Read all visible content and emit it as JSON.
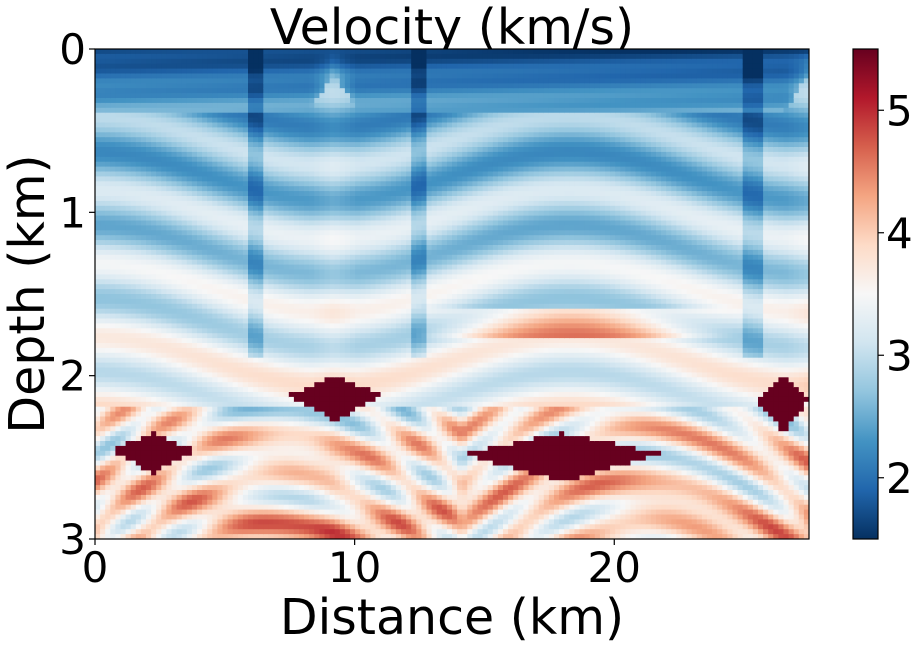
{
  "chart_data": {
    "type": "heatmap",
    "title": "Velocity (km/s)",
    "xlabel": "Distance (km)",
    "ylabel": "Depth (km)",
    "xlim": [
      0,
      27.5
    ],
    "ylim": [
      3,
      0
    ],
    "xticks": [
      "0",
      "10",
      "20"
    ],
    "xtick_values": [
      0,
      10,
      20
    ],
    "yticks": [
      "0",
      "1",
      "2",
      "3"
    ],
    "ytick_values": [
      0,
      1,
      2,
      3
    ],
    "colorbar": {
      "colormap": "RdBu_r",
      "range": [
        1.5,
        5.5
      ],
      "ticks": [
        "2",
        "3",
        "4",
        "5"
      ],
      "tick_values": [
        2,
        3,
        4,
        5
      ],
      "color_low": "#053061",
      "color_mid": "#f7f7f7",
      "color_high": "#67001f"
    },
    "grid": false,
    "features": {
      "shallow_low_velocity_bowls_center_x": [
        0,
        18.5
      ],
      "salt_bodies": [
        {
          "x_start": 0,
          "x_end": 4.5,
          "depth_top": 2.35,
          "depth_bottom": 2.6,
          "velocity": 5.5
        },
        {
          "x_start": 7,
          "x_end": 11.5,
          "depth_top": 2.0,
          "depth_bottom": 2.28,
          "velocity": 5.5
        },
        {
          "x_start": 13.5,
          "x_end": 22.5,
          "depth_top": 2.35,
          "depth_bottom": 2.65,
          "velocity": 5.5
        },
        {
          "x_start": 25.5,
          "x_end": 27.5,
          "depth_top": 2.0,
          "depth_bottom": 2.35,
          "velocity": 5.5
        }
      ],
      "fault_x": [
        6.2,
        12.5,
        25.3
      ]
    }
  }
}
